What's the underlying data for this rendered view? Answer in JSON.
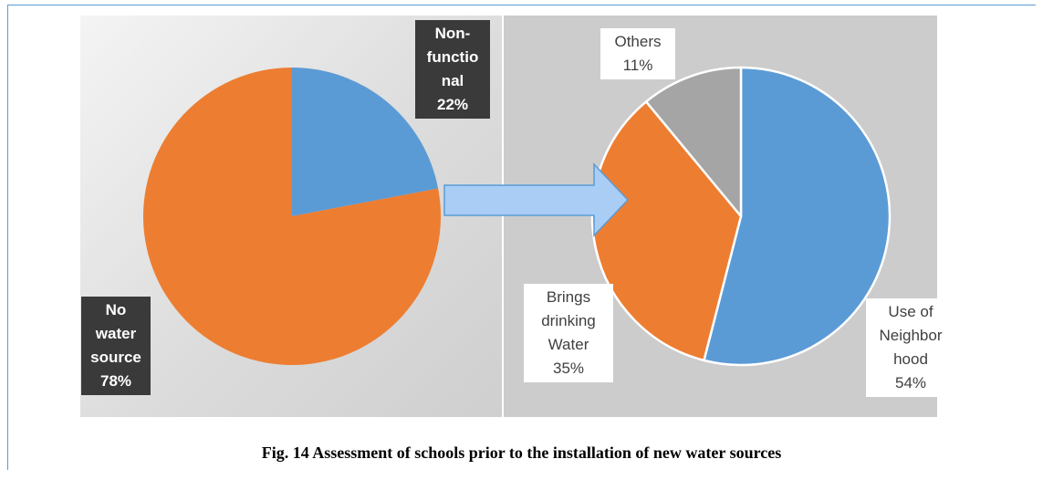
{
  "caption": "Fig. 14 Assessment of schools prior to the installation of new water sources",
  "chart_data": [
    {
      "type": "pie",
      "slices": [
        {
          "label_lines": [
            "Non-",
            "functio",
            "nal",
            "22%"
          ],
          "value": 22,
          "color": "#5b9bd5"
        },
        {
          "label_lines": [
            "No",
            "water",
            "source",
            "78%"
          ],
          "value": 78,
          "color": "#ed7d31"
        }
      ]
    },
    {
      "type": "pie",
      "slices": [
        {
          "label_lines": [
            "Use of",
            "Neighbor",
            "hood",
            "54%"
          ],
          "value": 54,
          "color": "#5b9bd5"
        },
        {
          "label_lines": [
            "Brings",
            "drinking",
            "Water",
            "35%"
          ],
          "value": 35,
          "color": "#ed7d31"
        },
        {
          "label_lines": [
            "Others",
            "11%"
          ],
          "value": 11,
          "color": "#a5a5a5"
        }
      ]
    }
  ]
}
